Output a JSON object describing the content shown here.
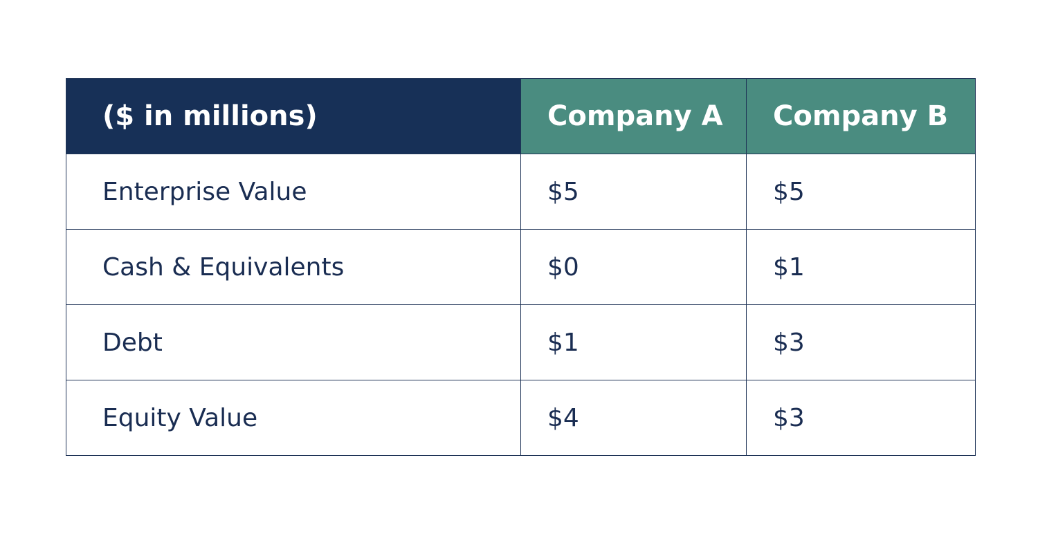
{
  "table": {
    "header": [
      "($ in millions)",
      "Company A",
      "Company B"
    ],
    "rows": [
      [
        "Enterprise Value",
        "$5",
        "$5"
      ],
      [
        "Cash & Equivalents",
        "$0",
        "$1"
      ],
      [
        "Debt",
        "$1",
        "$3"
      ],
      [
        "Equity Value",
        "$4",
        "$3"
      ]
    ]
  }
}
